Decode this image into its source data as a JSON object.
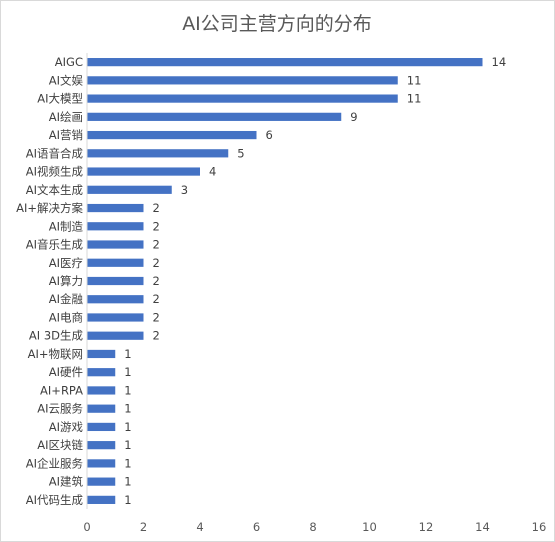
{
  "chart_data": {
    "type": "bar",
    "orientation": "horizontal",
    "title": "AI公司主营方向的分布",
    "categories": [
      "AIGC",
      "AI文娱",
      "AI大模型",
      "AI绘画",
      "AI营销",
      "AI语音合成",
      "AI视频生成",
      "AI文本生成",
      "AI+解决方案",
      "AI制造",
      "AI音乐生成",
      "AI医疗",
      "AI算力",
      "AI金融",
      "AI电商",
      "AI 3D生成",
      "AI+物联网",
      "AI硬件",
      "AI+RPA",
      "AI云服务",
      "AI游戏",
      "AI区块链",
      "AI企业服务",
      "AI建筑",
      "AI代码生成"
    ],
    "values": [
      14,
      11,
      11,
      9,
      6,
      5,
      4,
      3,
      2,
      2,
      2,
      2,
      2,
      2,
      2,
      2,
      1,
      1,
      1,
      1,
      1,
      1,
      1,
      1,
      1
    ],
    "xlim": [
      0,
      16
    ],
    "xticks": [
      0,
      2,
      4,
      6,
      8,
      10,
      12,
      14,
      16
    ],
    "grid": false,
    "data_labels": true,
    "bar_color": "#4472C4"
  }
}
